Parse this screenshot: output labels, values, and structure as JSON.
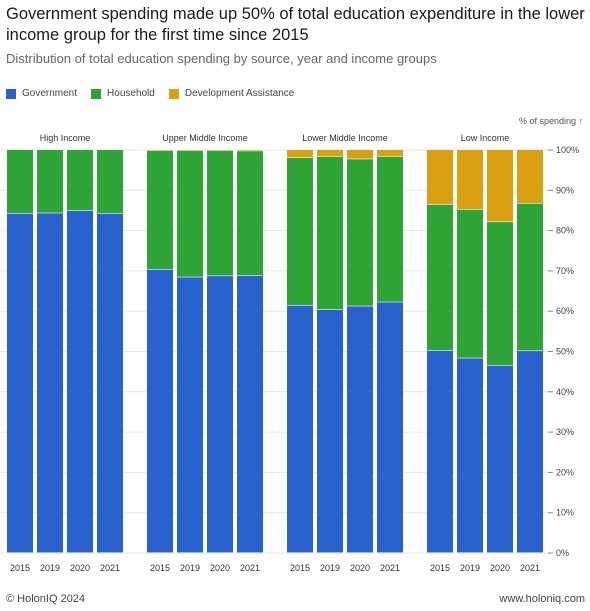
{
  "header": {
    "title": "Government spending made up 50% of total education expenditure in the lower income group for the first time since 2015",
    "subtitle": "Distribution of total education spending by source, year and income groups"
  },
  "footer": {
    "copyright": "© HolonIQ 2024",
    "website": "www.holoniq.com"
  },
  "colors": {
    "Government": "#2962cc",
    "Household": "#2ea336",
    "Development Assistance": "#dba012"
  },
  "chart_data": {
    "type": "bar",
    "stacked": true,
    "ylabel": "% of spending ↑",
    "ylim": [
      0,
      100
    ],
    "yticks": [
      0,
      10,
      20,
      30,
      40,
      50,
      60,
      70,
      80,
      90,
      100
    ],
    "ytick_labels": [
      "0%",
      "10%",
      "20%",
      "30%",
      "40%",
      "50%",
      "60%",
      "70%",
      "80%",
      "90%",
      "100%"
    ],
    "legend_position": "top-left",
    "series_names": [
      "Government",
      "Household",
      "Development Assistance"
    ],
    "groups": [
      {
        "name": "High Income",
        "categories": [
          "2015",
          "2019",
          "2020",
          "2021"
        ],
        "series": [
          {
            "name": "Government",
            "values": [
              84.2,
              84.3,
              84.9,
              84.2
            ]
          },
          {
            "name": "Household",
            "values": [
              15.8,
              15.7,
              15.1,
              15.8
            ]
          },
          {
            "name": "Development Assistance",
            "values": [
              0,
              0,
              0,
              0
            ]
          }
        ]
      },
      {
        "name": "Upper Middle Income",
        "categories": [
          "2015",
          "2019",
          "2020",
          "2021"
        ],
        "series": [
          {
            "name": "Government",
            "values": [
              70.3,
              68.4,
              68.7,
              68.8
            ]
          },
          {
            "name": "Household",
            "values": [
              29.5,
              31.4,
              31.1,
              30.9
            ]
          },
          {
            "name": "Development Assistance",
            "values": [
              0.2,
              0.2,
              0.2,
              0.3
            ]
          }
        ]
      },
      {
        "name": "Lower Middle Income",
        "categories": [
          "2015",
          "2019",
          "2020",
          "2021"
        ],
        "series": [
          {
            "name": "Government",
            "values": [
              61.4,
              60.3,
              61.2,
              62.2
            ]
          },
          {
            "name": "Household",
            "values": [
              36.6,
              38.0,
              36.5,
              36.1
            ]
          },
          {
            "name": "Development Assistance",
            "values": [
              2.0,
              1.7,
              2.3,
              1.7
            ]
          }
        ]
      },
      {
        "name": "Low Income",
        "categories": [
          "2015",
          "2019",
          "2020",
          "2021"
        ],
        "series": [
          {
            "name": "Government",
            "values": [
              50.2,
              48.3,
              46.5,
              50.1
            ]
          },
          {
            "name": "Household",
            "values": [
              36.2,
              36.9,
              35.6,
              36.6
            ]
          },
          {
            "name": "Development Assistance",
            "values": [
              13.6,
              14.8,
              17.9,
              13.3
            ]
          }
        ]
      }
    ]
  }
}
